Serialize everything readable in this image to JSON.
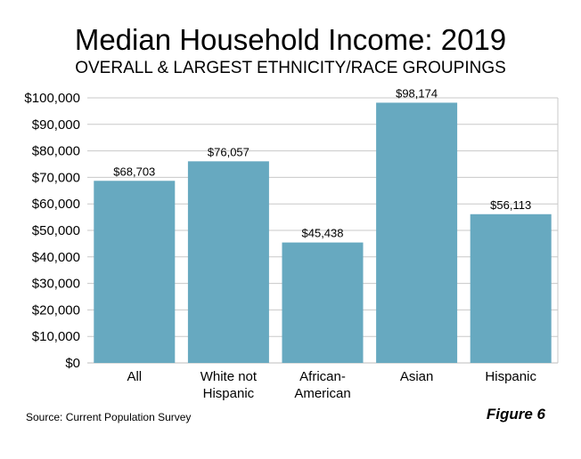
{
  "title": "Median Household Income: 2019",
  "subtitle": "OVERALL & LARGEST ETHNICITY/RACE GROUPINGS",
  "source": "Source: Current Population Survey",
  "figure_label": "Figure 6",
  "colors": {
    "bar": "#67a9c0",
    "grid": "#c8c8c8",
    "axis": "#bdbdbd"
  },
  "chart_data": {
    "type": "bar",
    "title": "Median Household Income: 2019",
    "subtitle": "OVERALL & LARGEST ETHNICITY/RACE GROUPINGS",
    "categories": [
      [
        "All"
      ],
      [
        "White not",
        "Hispanic"
      ],
      [
        "African-",
        "American"
      ],
      [
        "Asian"
      ],
      [
        "Hispanic"
      ]
    ],
    "values": [
      68703,
      76057,
      45438,
      98174,
      56113
    ],
    "value_labels": [
      "$68,703",
      "$76,057",
      "$45,438",
      "$98,174",
      "$56,113"
    ],
    "ylim": [
      0,
      100000
    ],
    "yticks": [
      0,
      10000,
      20000,
      30000,
      40000,
      50000,
      60000,
      70000,
      80000,
      90000,
      100000
    ],
    "ytick_labels": [
      "$0",
      "$10,000",
      "$20,000",
      "$30,000",
      "$40,000",
      "$50,000",
      "$60,000",
      "$70,000",
      "$80,000",
      "$90,000",
      "$100,000"
    ],
    "grid": true,
    "legend": "none"
  }
}
